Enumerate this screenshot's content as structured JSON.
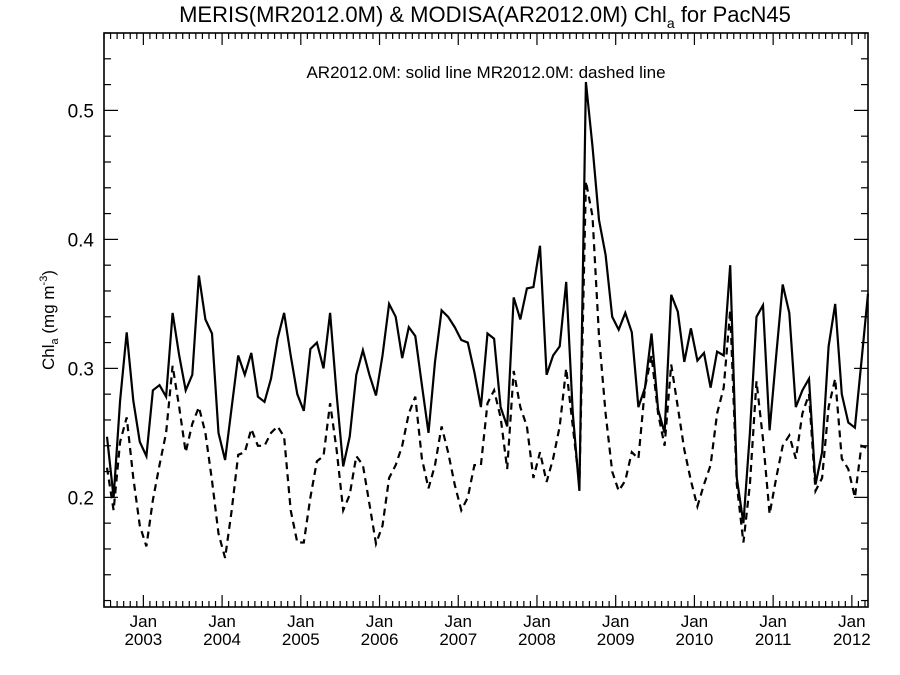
{
  "chart_data": {
    "type": "line",
    "title_main": "MERIS(MR2012.0M) & MODISA(AR2012.0M)  Chl",
    "title_sub": "a",
    "title_tail": " for PacN45",
    "annotation": "AR2012.0M: solid line   MR2012.0M: dashed line",
    "ylabel_main": "Chl",
    "ylabel_sub": "a",
    "ylabel_units": " (mg m",
    "ylabel_exp": "-3",
    "ylabel_close": ")",
    "ylim": [
      0.115,
      0.56
    ],
    "xlim": [
      "2002-07-01",
      "2012-03-15"
    ],
    "yticks": [
      0.2,
      0.3,
      0.4,
      0.5
    ],
    "ytick_labels": [
      "0.2",
      "0.3",
      "0.4",
      "0.5"
    ],
    "xticks": [
      {
        "date": "2003-01-01",
        "month": "Jan",
        "year": "2003"
      },
      {
        "date": "2004-01-01",
        "month": "Jan",
        "year": "2004"
      },
      {
        "date": "2005-01-01",
        "month": "Jan",
        "year": "2005"
      },
      {
        "date": "2006-01-01",
        "month": "Jan",
        "year": "2006"
      },
      {
        "date": "2007-01-01",
        "month": "Jan",
        "year": "2007"
      },
      {
        "date": "2008-01-01",
        "month": "Jan",
        "year": "2008"
      },
      {
        "date": "2009-01-01",
        "month": "Jan",
        "year": "2009"
      },
      {
        "date": "2010-01-01",
        "month": "Jan",
        "year": "2010"
      },
      {
        "date": "2011-01-01",
        "month": "Jan",
        "year": "2011"
      },
      {
        "date": "2012-01-01",
        "month": "Jan",
        "year": "2012"
      }
    ],
    "grid": false,
    "series": [
      {
        "name": "AR2012.0M",
        "style": "solid",
        "x": [
          "2002-07",
          "2002-08",
          "2002-09",
          "2002-10",
          "2002-11",
          "2002-12",
          "2003-01",
          "2003-02",
          "2003-03",
          "2003-04",
          "2003-05",
          "2003-06",
          "2003-07",
          "2003-08",
          "2003-09",
          "2003-10",
          "2003-11",
          "2003-12",
          "2004-01",
          "2004-02",
          "2004-03",
          "2004-04",
          "2004-05",
          "2004-06",
          "2004-07",
          "2004-08",
          "2004-09",
          "2004-10",
          "2004-11",
          "2004-12",
          "2005-01",
          "2005-02",
          "2005-03",
          "2005-04",
          "2005-05",
          "2005-06",
          "2005-07",
          "2005-08",
          "2005-09",
          "2005-10",
          "2005-11",
          "2005-12",
          "2006-01",
          "2006-02",
          "2006-03",
          "2006-04",
          "2006-05",
          "2006-06",
          "2006-07",
          "2006-08",
          "2006-09",
          "2006-10",
          "2006-11",
          "2006-12",
          "2007-01",
          "2007-02",
          "2007-03",
          "2007-04",
          "2007-05",
          "2007-06",
          "2007-07",
          "2007-08",
          "2007-09",
          "2007-10",
          "2007-11",
          "2007-12",
          "2008-01",
          "2008-02",
          "2008-03",
          "2008-04",
          "2008-05",
          "2008-06",
          "2008-07",
          "2008-08",
          "2008-09",
          "2008-10",
          "2008-11",
          "2008-12",
          "2009-01",
          "2009-02",
          "2009-03",
          "2009-04",
          "2009-05",
          "2009-06",
          "2009-07",
          "2009-08",
          "2009-09",
          "2009-10",
          "2009-11",
          "2009-12",
          "2010-01",
          "2010-02",
          "2010-03",
          "2010-04",
          "2010-05",
          "2010-06",
          "2010-07",
          "2010-08",
          "2010-09",
          "2010-10",
          "2010-11",
          "2010-12",
          "2011-01",
          "2011-02",
          "2011-03",
          "2011-04",
          "2011-05",
          "2011-06",
          "2011-07",
          "2011-08",
          "2011-09",
          "2011-10",
          "2011-11",
          "2011-12",
          "2012-01",
          "2012-02",
          "2012-03"
        ],
        "values": [
          0.247,
          0.2,
          0.275,
          0.328,
          0.275,
          0.243,
          0.232,
          0.283,
          0.287,
          0.278,
          0.343,
          0.31,
          0.283,
          0.295,
          0.372,
          0.338,
          0.327,
          0.25,
          0.229,
          0.27,
          0.31,
          0.295,
          0.312,
          0.278,
          0.274,
          0.292,
          0.323,
          0.343,
          0.31,
          0.28,
          0.267,
          0.315,
          0.32,
          0.3,
          0.343,
          0.28,
          0.224,
          0.247,
          0.295,
          0.314,
          0.295,
          0.279,
          0.31,
          0.35,
          0.34,
          0.308,
          0.332,
          0.325,
          0.287,
          0.25,
          0.305,
          0.345,
          0.34,
          0.332,
          0.322,
          0.32,
          0.297,
          0.27,
          0.327,
          0.323,
          0.27,
          0.255,
          0.355,
          0.338,
          0.362,
          0.363,
          0.395,
          0.295,
          0.31,
          0.317,
          0.367,
          0.265,
          0.205,
          0.522,
          0.472,
          0.415,
          0.388,
          0.34,
          0.33,
          0.343,
          0.328,
          0.27,
          0.285,
          0.327,
          0.268,
          0.25,
          0.357,
          0.344,
          0.305,
          0.331,
          0.306,
          0.312,
          0.285,
          0.313,
          0.31,
          0.38,
          0.215,
          0.18,
          0.25,
          0.34,
          0.349,
          0.252,
          0.31,
          0.365,
          0.343,
          0.27,
          0.283,
          0.292,
          0.21,
          0.235,
          0.317,
          0.35,
          0.28,
          0.258,
          0.254,
          0.305,
          0.358
        ]
      },
      {
        "name": "MR2012.0M",
        "style": "dashed",
        "x": [
          "2002-07",
          "2002-08",
          "2002-09",
          "2002-10",
          "2002-11",
          "2002-12",
          "2003-01",
          "2003-02",
          "2003-03",
          "2003-04",
          "2003-05",
          "2003-06",
          "2003-07",
          "2003-08",
          "2003-09",
          "2003-10",
          "2003-11",
          "2003-12",
          "2004-01",
          "2004-02",
          "2004-03",
          "2004-04",
          "2004-05",
          "2004-06",
          "2004-07",
          "2004-08",
          "2004-09",
          "2004-10",
          "2004-11",
          "2004-12",
          "2005-01",
          "2005-02",
          "2005-03",
          "2005-04",
          "2005-05",
          "2005-06",
          "2005-07",
          "2005-08",
          "2005-09",
          "2005-10",
          "2005-11",
          "2005-12",
          "2006-01",
          "2006-02",
          "2006-03",
          "2006-04",
          "2006-05",
          "2006-06",
          "2006-07",
          "2006-08",
          "2006-09",
          "2006-10",
          "2006-11",
          "2006-12",
          "2007-01",
          "2007-02",
          "2007-03",
          "2007-04",
          "2007-05",
          "2007-06",
          "2007-07",
          "2007-08",
          "2007-09",
          "2007-10",
          "2007-11",
          "2007-12",
          "2008-01",
          "2008-02",
          "2008-03",
          "2008-04",
          "2008-05",
          "2008-06",
          "2008-07",
          "2008-08",
          "2008-09",
          "2008-10",
          "2008-11",
          "2008-12",
          "2009-01",
          "2009-02",
          "2009-03",
          "2009-04",
          "2009-05",
          "2009-06",
          "2009-07",
          "2009-08",
          "2009-09",
          "2009-10",
          "2009-11",
          "2009-12",
          "2010-01",
          "2010-02",
          "2010-03",
          "2010-04",
          "2010-05",
          "2010-06",
          "2010-07",
          "2010-08",
          "2010-09",
          "2010-10",
          "2010-11",
          "2010-12",
          "2011-01",
          "2011-02",
          "2011-03",
          "2011-04",
          "2011-05",
          "2011-06",
          "2011-07",
          "2011-08",
          "2011-09",
          "2011-10",
          "2011-11",
          "2011-12",
          "2012-01",
          "2012-02",
          "2012-03"
        ],
        "values": [
          0.223,
          0.19,
          0.243,
          0.262,
          0.215,
          0.178,
          0.162,
          0.198,
          0.225,
          0.25,
          0.302,
          0.27,
          0.235,
          0.257,
          0.27,
          0.25,
          0.213,
          0.172,
          0.153,
          0.19,
          0.233,
          0.235,
          0.253,
          0.24,
          0.24,
          0.25,
          0.255,
          0.247,
          0.19,
          0.165,
          0.165,
          0.2,
          0.228,
          0.232,
          0.273,
          0.237,
          0.19,
          0.202,
          0.232,
          0.225,
          0.195,
          0.164,
          0.178,
          0.215,
          0.225,
          0.24,
          0.265,
          0.278,
          0.23,
          0.207,
          0.225,
          0.255,
          0.235,
          0.21,
          0.19,
          0.2,
          0.225,
          0.225,
          0.273,
          0.283,
          0.262,
          0.222,
          0.298,
          0.27,
          0.255,
          0.215,
          0.235,
          0.212,
          0.23,
          0.255,
          0.3,
          0.255,
          0.21,
          0.445,
          0.418,
          0.325,
          0.265,
          0.22,
          0.205,
          0.213,
          0.235,
          0.23,
          0.285,
          0.31,
          0.265,
          0.24,
          0.303,
          0.27,
          0.237,
          0.213,
          0.193,
          0.21,
          0.225,
          0.265,
          0.285,
          0.345,
          0.21,
          0.165,
          0.21,
          0.29,
          0.245,
          0.187,
          0.215,
          0.24,
          0.248,
          0.23,
          0.265,
          0.28,
          0.205,
          0.215,
          0.27,
          0.292,
          0.23,
          0.222,
          0.2,
          0.24,
          0.238
        ]
      }
    ]
  }
}
